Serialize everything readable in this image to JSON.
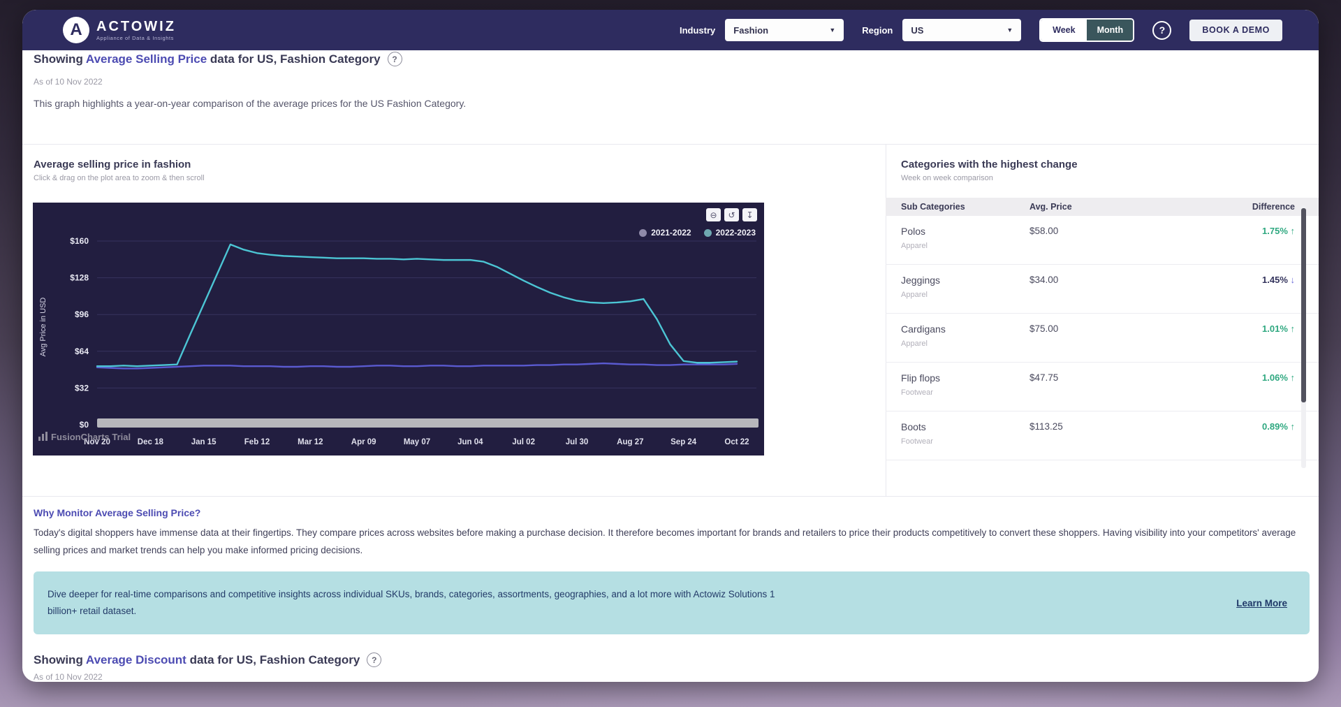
{
  "header": {
    "brand": {
      "name": "ACTOWIZ",
      "mark": "A",
      "tagline": "Appliance of Data & Insights"
    },
    "industry_label": "Industry",
    "industry_value": "Fashion",
    "region_label": "Region",
    "region_value": "US",
    "week_label": "Week",
    "month_label": "Month",
    "help_glyph": "?",
    "cta_label": "BOOK A DEMO"
  },
  "page": {
    "title_prefix": "Showing",
    "title_highlight": "Average Selling Price",
    "title_suffix": "data for US, Fashion Category",
    "help_glyph": "?",
    "as_of": "As of 10 Nov 2022",
    "description": "This graph highlights a year-on-year comparison of the average prices for the US Fashion Category."
  },
  "chart_panel": {
    "title": "Average selling price in fashion",
    "subtitle": "Click & drag on the plot area to zoom & then scroll",
    "watermark": "FusionCharts Trial",
    "toolbar_icons": {
      "zoom_out": "⊖",
      "reset": "↺",
      "download": "↧"
    }
  },
  "chart_data": {
    "type": "line",
    "title": "Average selling price in fashion",
    "ylabel": "Avg Price in USD",
    "ylim": [
      0,
      160
    ],
    "ytick_values": [
      160,
      128,
      96,
      64,
      32,
      0
    ],
    "ytick_labels": [
      "$160",
      "$128",
      "$96",
      "$64",
      "$32",
      "$0"
    ],
    "x_tick_labels": [
      "Nov 20",
      "Dec 18",
      "Jan 15",
      "Feb 12",
      "Mar 12",
      "Apr 09",
      "May 07",
      "Jun 04",
      "Jul 02",
      "Jul 30",
      "Aug 27",
      "Sep 24",
      "Oct 22"
    ],
    "x_tick_weeks": [
      0,
      4,
      8,
      12,
      16,
      20,
      24,
      28,
      32,
      36,
      40,
      44,
      48
    ],
    "grid": true,
    "legend_position": "top-right",
    "series": [
      {
        "name": "2021-2022",
        "color": "#5a5ad0",
        "dot_color": "#8f8aa8",
        "values": [
          50,
          49.5,
          49,
          49,
          49.5,
          50,
          50.5,
          51,
          51.5,
          51.5,
          51.5,
          51,
          51,
          51,
          50.5,
          50.5,
          51,
          51,
          50.5,
          50.5,
          51,
          51.5,
          51.5,
          51,
          51,
          51.5,
          51.5,
          51,
          51,
          51.5,
          51.5,
          51.5,
          51.5,
          52,
          52,
          52.5,
          52.5,
          53,
          53.5,
          53,
          52.5,
          52.5,
          52,
          52,
          52.5,
          52.5,
          52.5,
          52.5,
          53
        ]
      },
      {
        "name": "2022-2023",
        "color": "#4cc5d4",
        "dot_color": "#6fa8b0",
        "values": [
          51,
          51,
          51.5,
          51,
          51.5,
          52,
          52.5,
          79,
          105,
          131,
          157,
          152.5,
          149.5,
          148,
          147,
          146.5,
          146,
          145.5,
          145,
          145,
          145,
          144.5,
          144.5,
          144,
          144.5,
          144,
          143.5,
          143.5,
          143.5,
          142,
          137.5,
          131.5,
          125.5,
          120,
          115,
          111,
          108,
          106.5,
          106,
          106.5,
          107.5,
          109.5,
          92,
          70,
          55.5,
          54,
          54,
          54.5,
          55
        ]
      }
    ]
  },
  "categories_panel": {
    "title": "Categories with the highest change",
    "subtitle": "Week on week comparison",
    "columns": [
      "Sub Categories",
      "Avg. Price",
      "Difference"
    ],
    "rows": [
      {
        "name": "Polos",
        "category": "Apparel",
        "price": "$58.00",
        "difference": "1.75%",
        "direction": "up"
      },
      {
        "name": "Jeggings",
        "category": "Apparel",
        "price": "$34.00",
        "difference": "1.45%",
        "direction": "down"
      },
      {
        "name": "Cardigans",
        "category": "Apparel",
        "price": "$75.00",
        "difference": "1.01%",
        "direction": "up"
      },
      {
        "name": "Flip flops",
        "category": "Footwear",
        "price": "$47.75",
        "difference": "1.06%",
        "direction": "up"
      },
      {
        "name": "Boots",
        "category": "Footwear",
        "price": "$113.25",
        "difference": "0.89%",
        "direction": "up"
      }
    ]
  },
  "why_monitor": {
    "title": "Why Monitor Average Selling Price?",
    "body": "Today's digital shoppers have immense data at their fingertips. They compare prices across websites before making a purchase decision. It therefore becomes important for brands and retailers to price their products competitively to convert these shoppers. Having visibility into your competitors' average selling prices and market trends can help you make informed pricing decisions."
  },
  "callout": {
    "text": "Dive deeper for real-time comparisons and competitive insights across individual SKUs, brands, categories, assortments, geographies, and a lot more with Actowiz Solutions 1 billion+ retail dataset.",
    "link": "Learn More"
  },
  "next_section": {
    "title_prefix": "Showing",
    "title_highlight": "Average Discount",
    "title_suffix": "data for US, Fashion Category",
    "help_glyph": "?",
    "as_of": "As of 10 Nov 2022"
  },
  "colors": {
    "header_bg": "#2e2c5f",
    "accent": "#4c4bb2",
    "chart_bg": "#221e40",
    "gridline": "#37335e",
    "green_up": "#2fa880",
    "down_arrow": "#6b6bd8",
    "callout_bg": "#b5dfe3",
    "month_active_bg": "#3a565c"
  }
}
